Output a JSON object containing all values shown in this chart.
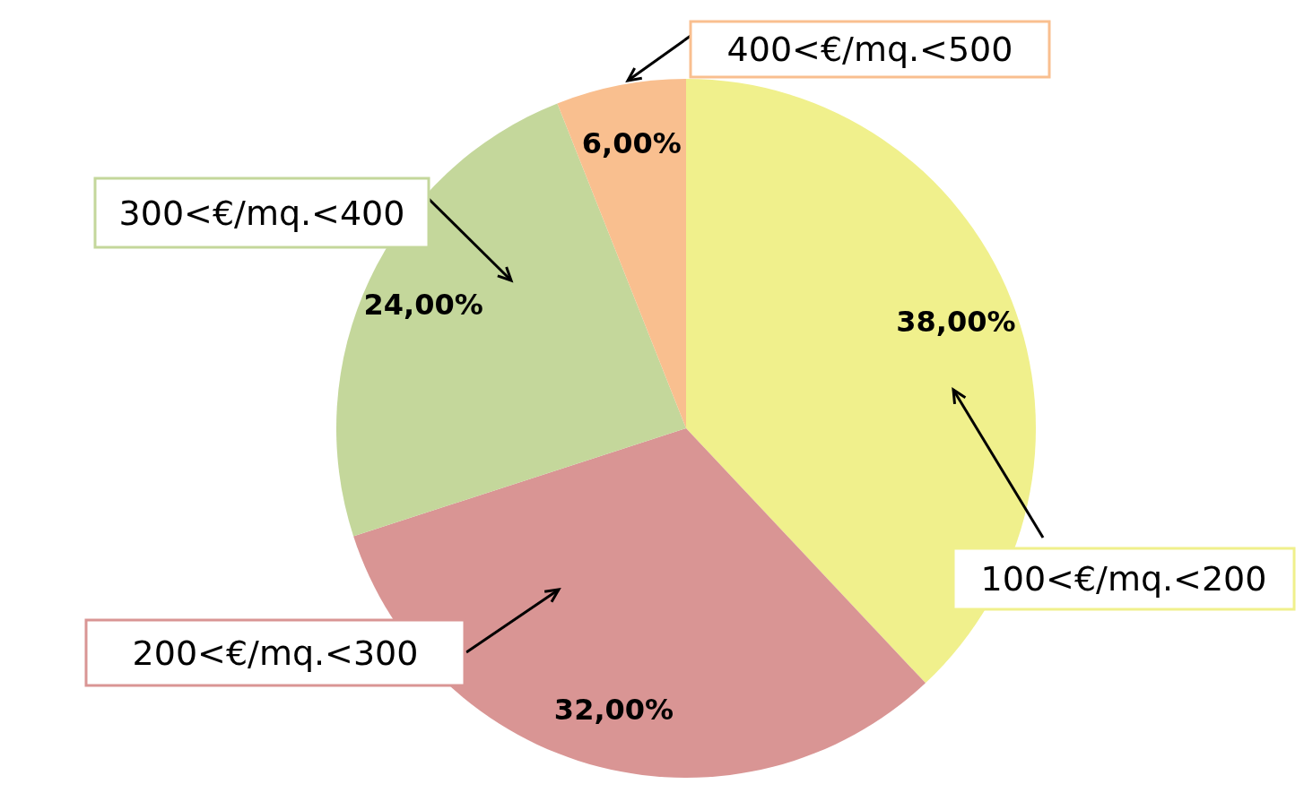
{
  "chart_data": {
    "type": "pie",
    "categories": [
      "100<€/mq.<200",
      "200<€/mq.<300",
      "300<€/mq.<400",
      "400<€/mq.<500"
    ],
    "values": [
      38,
      32,
      24,
      6
    ],
    "colors": [
      "#f0f08c",
      "#d99594",
      "#c4d79b",
      "#f9bf8f"
    ],
    "value_labels": [
      "38,00%",
      "32,00%",
      "24,00%",
      "6,00%"
    ],
    "legend": false
  }
}
